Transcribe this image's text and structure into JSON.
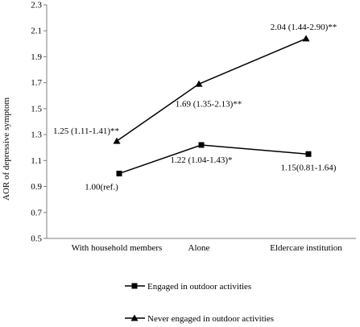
{
  "chart_data": {
    "type": "line",
    "ylabel": "AOR of depressive symptom",
    "xlabel": "",
    "categories": [
      "With household members",
      "Alone",
      "Eldercare institution"
    ],
    "ylim": [
      0.5,
      2.3
    ],
    "yticks": [
      0.5,
      0.7,
      0.9,
      1.1,
      1.3,
      1.5,
      1.7,
      1.9,
      2.1,
      2.3
    ],
    "ytick_labels": [
      "0.5",
      "0.7",
      "0.9",
      "1.1",
      "1.3",
      "1.5",
      "1.7",
      "1.9",
      "2.1",
      "2.3"
    ],
    "grid": false,
    "legend_position": "bottom",
    "series": [
      {
        "name": "Engaged  in outdoor activities",
        "marker": "square",
        "values": [
          1.0,
          1.22,
          1.15
        ],
        "labels": [
          "1.00(ref.)",
          "1.22 (1.04-1.43)*",
          "1.15(0.81-1.64)"
        ]
      },
      {
        "name": "Never engaged in outdoor activities",
        "marker": "triangle",
        "values": [
          1.25,
          1.69,
          2.04
        ],
        "labels": [
          "1.25 (1.11-1.41)**",
          "1.69 (1.35-2.13)**",
          "2.04 (1.44-2.90)**"
        ]
      }
    ]
  }
}
